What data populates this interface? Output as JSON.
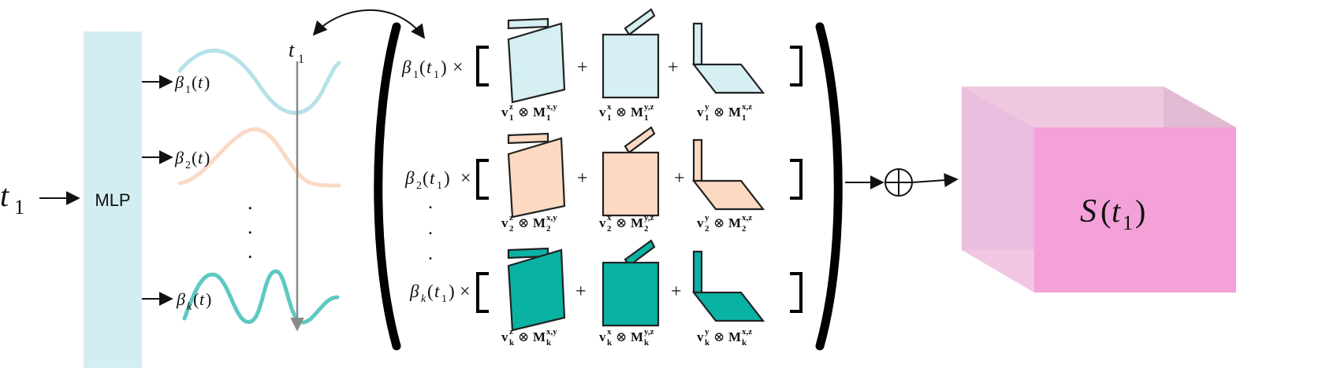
{
  "input": {
    "symbol": "t",
    "sub": "1"
  },
  "mlp": {
    "label": "MLP"
  },
  "time_marker": {
    "symbol": "t",
    "sub": "1"
  },
  "ellipsis": ".",
  "output": {
    "script": "S",
    "arg": "t",
    "sub": "1"
  },
  "colors": {
    "mlp_fill": "#d3eef3",
    "row1_fill": "#d5eff3",
    "row1_curve": "#b7e1e8",
    "row2_fill": "#fcd9c2",
    "row2_curve": "#fbd9c6",
    "rowk_fill": "#0ab2a4",
    "rowk_curve": "#5ec9c2",
    "cube_front": "#f3a1d8",
    "cube_side": "#e9bede",
    "cube_top": "#edc8df",
    "cube_bottom": "#f4c8e4"
  },
  "rows": [
    {
      "id": "1",
      "beta": {
        "name": "β",
        "sub": "1",
        "arg": "t"
      },
      "coef": {
        "name": "β",
        "sub": "1",
        "arg": "t",
        "argsub": "1"
      },
      "times": "×",
      "plus": "+",
      "terms": [
        {
          "v": "v",
          "vsup": "z",
          "vsub": "1",
          "otimes": "⊗",
          "m": "M",
          "msup": "x,y",
          "msub": "1"
        },
        {
          "v": "v",
          "vsup": "x",
          "vsub": "1",
          "otimes": "⊗",
          "m": "M",
          "msup": "y,z",
          "msub": "1"
        },
        {
          "v": "v",
          "vsup": "y",
          "vsub": "1",
          "otimes": "⊗",
          "m": "M",
          "msup": "x,z",
          "msub": "1"
        }
      ]
    },
    {
      "id": "2",
      "beta": {
        "name": "β",
        "sub": "2",
        "arg": "t"
      },
      "coef": {
        "name": "β",
        "sub": "2",
        "arg": "t",
        "argsub": "1"
      },
      "times": "×",
      "plus": "+",
      "terms": [
        {
          "v": "v",
          "vsup": "z",
          "vsub": "2",
          "otimes": "⊗",
          "m": "M",
          "msup": "x,y",
          "msub": "2"
        },
        {
          "v": "v",
          "vsup": "x",
          "vsub": "2",
          "otimes": "⊗",
          "m": "M",
          "msup": "y,z",
          "msub": "2"
        },
        {
          "v": "v",
          "vsup": "y",
          "vsub": "2",
          "otimes": "⊗",
          "m": "M",
          "msup": "x,z",
          "msub": "2"
        }
      ]
    },
    {
      "id": "k",
      "beta": {
        "name": "β",
        "sub": "k",
        "arg": "t"
      },
      "coef": {
        "name": "β",
        "sub": "k",
        "arg": "t",
        "argsub": "1"
      },
      "times": "×",
      "plus": "+",
      "terms": [
        {
          "v": "v",
          "vsup": "z",
          "vsub": "k",
          "otimes": "⊗",
          "m": "M",
          "msup": "x,y",
          "msub": "k"
        },
        {
          "v": "v",
          "vsup": "x",
          "vsub": "k",
          "otimes": "⊗",
          "m": "M",
          "msup": "y,z",
          "msub": "k"
        },
        {
          "v": "v",
          "vsup": "y",
          "vsub": "k",
          "otimes": "⊗",
          "m": "M",
          "msup": "x,z",
          "msub": "k"
        }
      ]
    }
  ]
}
